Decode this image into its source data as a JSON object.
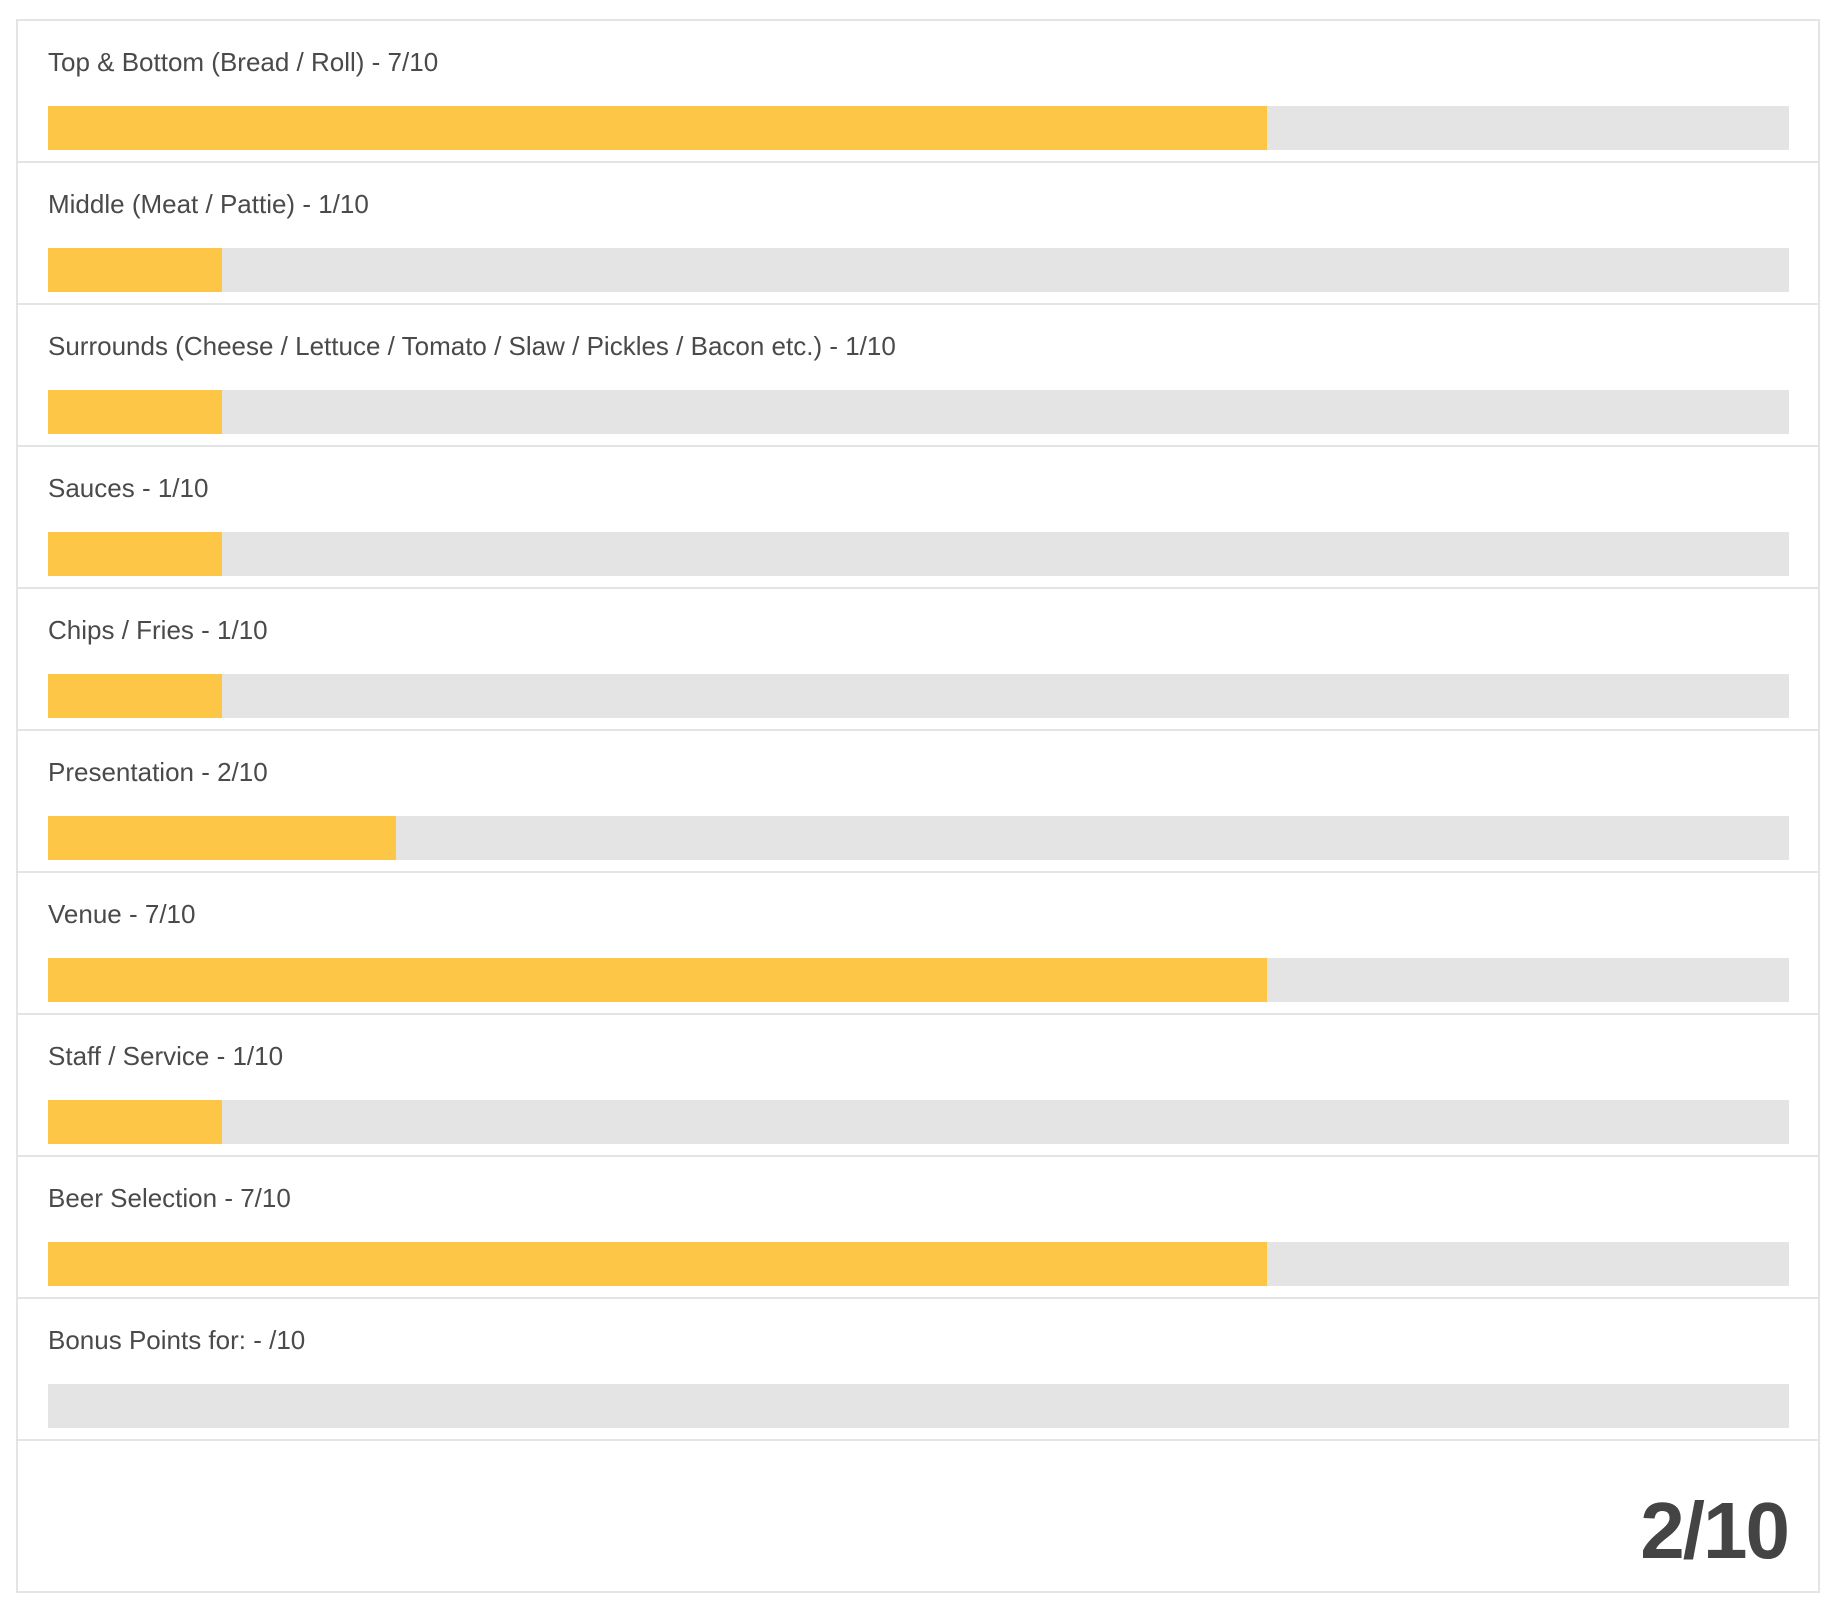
{
  "ratings": [
    {
      "label": "Top & Bottom (Bread / Roll) - 7/10",
      "score": 7,
      "max": 10
    },
    {
      "label": "Middle (Meat / Pattie) - 1/10",
      "score": 1,
      "max": 10
    },
    {
      "label": "Surrounds (Cheese / Lettuce / Tomato / Slaw / Pickles / Bacon etc.) - 1/10",
      "score": 1,
      "max": 10
    },
    {
      "label": "Sauces - 1/10",
      "score": 1,
      "max": 10
    },
    {
      "label": "Chips / Fries - 1/10",
      "score": 1,
      "max": 10
    },
    {
      "label": "Presentation - 2/10",
      "score": 2,
      "max": 10
    },
    {
      "label": "Venue - 7/10",
      "score": 7,
      "max": 10
    },
    {
      "label": "Staff / Service - 1/10",
      "score": 1,
      "max": 10
    },
    {
      "label": "Beer Selection - 7/10",
      "score": 7,
      "max": 10
    },
    {
      "label": "Bonus Points for: - /10",
      "score": 0,
      "max": 10
    }
  ],
  "total": {
    "label": "2/10"
  },
  "colors": {
    "fill": "#fec647",
    "track": "#e4e4e4",
    "text": "#444444"
  }
}
